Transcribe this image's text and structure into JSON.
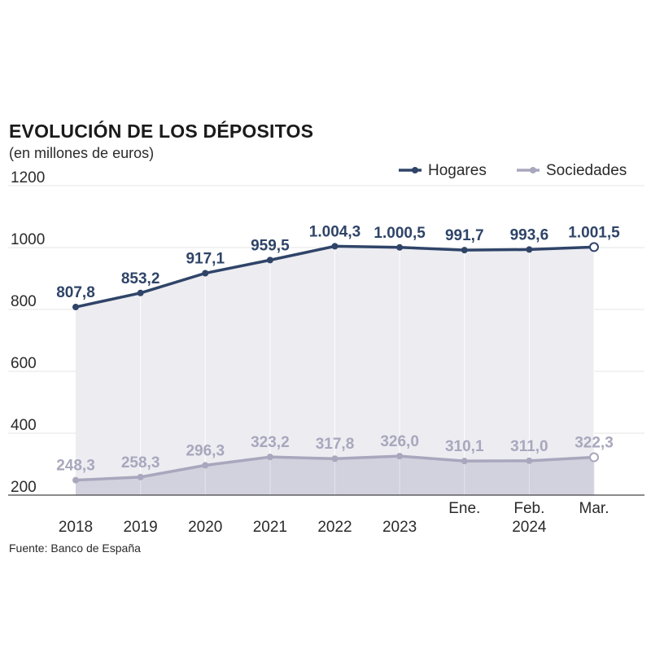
{
  "title": "EVOLUCIÓN DE LOS DÉPOSITOS",
  "subtitle": "(en millones de euros)",
  "source": "Fuente: Banco de España",
  "chart_data": {
    "type": "line",
    "categories": [
      "2018",
      "2019",
      "2020",
      "2021",
      "2022",
      "2023",
      "Ene.",
      "Feb.",
      "Mar."
    ],
    "category_group_label": "2024",
    "series": [
      {
        "name": "Hogares",
        "color": "#2f4468",
        "values": [
          807.8,
          853.2,
          917.1,
          959.5,
          1004.3,
          1000.5,
          991.7,
          993.6,
          1001.5
        ],
        "labels": [
          "807,8",
          "853,2",
          "917,1",
          "959,5",
          "1.004,3",
          "1.000,5",
          "991,7",
          "993,6",
          "1.001,5"
        ]
      },
      {
        "name": "Sociedades",
        "color": "#a8a7bd",
        "values": [
          248.3,
          258.3,
          296.3,
          323.2,
          317.8,
          326.0,
          310.1,
          311.0,
          322.3
        ],
        "labels": [
          "248,3",
          "258,3",
          "296,3",
          "323,2",
          "317,8",
          "326,0",
          "310,1",
          "311,0",
          "322,3"
        ]
      }
    ],
    "ylim": [
      200,
      1200
    ],
    "yticks": [
      200,
      400,
      600,
      800,
      1000,
      1200
    ],
    "grid": true,
    "legend": "top-right"
  }
}
